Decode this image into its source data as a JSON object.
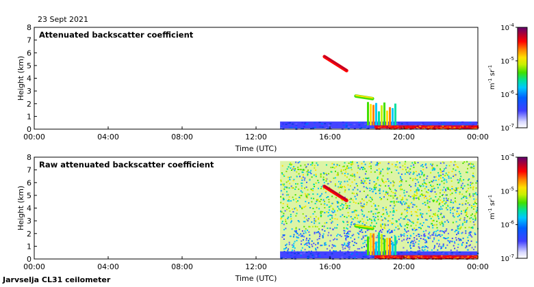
{
  "header": {
    "date": "23 Sept 2021"
  },
  "footer": {
    "instrument": "Jarvselja CL31 ceilometer"
  },
  "chart_data": [
    {
      "type": "heatmap",
      "title": "Attenuated backscatter coefficient",
      "xlabel": "Time (UTC)",
      "ylabel": "Height (km)",
      "xlim": [
        0,
        24
      ],
      "ylim": [
        0,
        8
      ],
      "xticks": [
        "00:00",
        "04:00",
        "08:00",
        "12:00",
        "16:00",
        "20:00",
        "00:00"
      ],
      "yticks": [
        "0",
        "1",
        "2",
        "3",
        "4",
        "5",
        "6",
        "7",
        "8"
      ],
      "colorbar": {
        "label": "m-1 sr-1",
        "scale": "log",
        "range": [
          1e-07,
          0.0001
        ],
        "ticks": [
          "10-7",
          "10-6",
          "10-5",
          "10-4"
        ]
      },
      "data_start_time": 13.3,
      "features": [
        {
          "kind": "boundary-layer",
          "t": [
            13.3,
            24
          ],
          "z": [
            0,
            0.6
          ],
          "level": "low"
        },
        {
          "kind": "surface-layer",
          "t": [
            18.4,
            24
          ],
          "z": [
            0,
            0.3
          ],
          "level": "high"
        },
        {
          "kind": "cloud-layer",
          "t": [
            15.7,
            16.9
          ],
          "z": [
            5.7,
            4.6
          ],
          "level": "high"
        },
        {
          "kind": "cloud-layer",
          "t": [
            17.4,
            18.3
          ],
          "z": [
            2.6,
            2.4
          ],
          "level": "medium"
        },
        {
          "kind": "precipitation",
          "t": [
            18.0,
            19.6
          ],
          "z": [
            2.2,
            0.3
          ],
          "level": "medium"
        }
      ]
    },
    {
      "type": "heatmap",
      "title": "Raw attenuated backscatter coefficient",
      "xlabel": "Time (UTC)",
      "ylabel": "Height (km)",
      "xlim": [
        0,
        24
      ],
      "ylim": [
        0,
        8
      ],
      "xticks": [
        "00:00",
        "04:00",
        "08:00",
        "12:00",
        "16:00",
        "20:00",
        "00:00"
      ],
      "yticks": [
        "0",
        "1",
        "2",
        "3",
        "4",
        "5",
        "6",
        "7",
        "8"
      ],
      "colorbar": {
        "label": "m-1 sr-1",
        "scale": "log",
        "range": [
          1e-07,
          0.0001
        ],
        "ticks": [
          "10-7",
          "10-6",
          "10-5",
          "10-4"
        ]
      },
      "data_start_time": 13.3,
      "background": "noisy",
      "features": [
        {
          "kind": "boundary-layer",
          "t": [
            13.3,
            24
          ],
          "z": [
            0,
            0.6
          ],
          "level": "low"
        },
        {
          "kind": "surface-layer",
          "t": [
            18.4,
            24
          ],
          "z": [
            0,
            0.3
          ],
          "level": "high"
        },
        {
          "kind": "cloud-layer",
          "t": [
            15.7,
            16.9
          ],
          "z": [
            5.7,
            4.6
          ],
          "level": "high"
        },
        {
          "kind": "cloud-layer",
          "t": [
            17.4,
            18.3
          ],
          "z": [
            2.6,
            2.4
          ],
          "level": "medium"
        },
        {
          "kind": "precipitation",
          "t": [
            18.0,
            19.6
          ],
          "z": [
            2.2,
            0.3
          ],
          "level": "medium"
        }
      ]
    }
  ]
}
